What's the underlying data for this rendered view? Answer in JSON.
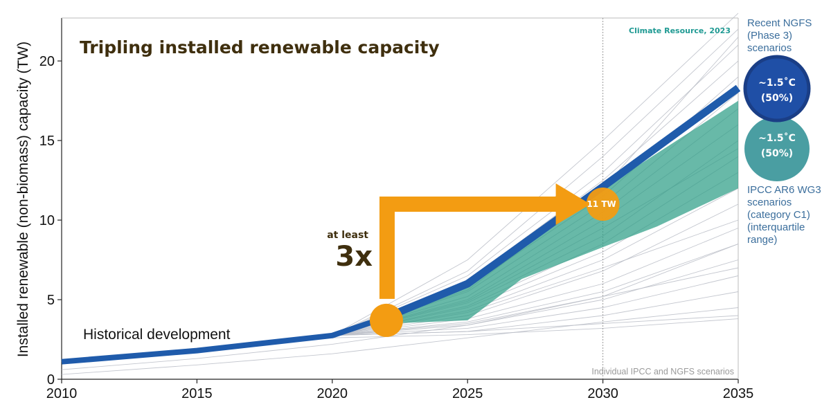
{
  "chart_data": {
    "type": "line",
    "title": "Tripling installed renewable capacity",
    "credit": "Climate Resource, 2023",
    "xlabel": "",
    "ylabel": "Installed renewable (non-biomass) capacity (TW)",
    "x_ticks": [
      "2010",
      "2015",
      "2020",
      "2025",
      "2030",
      "2035"
    ],
    "y_ticks": [
      "0",
      "5",
      "10",
      "15",
      "20"
    ],
    "xlim": [
      2010,
      2035
    ],
    "ylim": [
      0,
      22.7
    ],
    "reference_line_x": 2030,
    "series": [
      {
        "name": "Historical development",
        "x": [
          2010,
          2015,
          2020,
          2022
        ],
        "values": [
          1.1,
          1.8,
          2.75,
          3.9
        ]
      },
      {
        "name": "Recent NGFS (Phase 3) scenarios",
        "x": [
          2022,
          2025,
          2030,
          2035
        ],
        "values": [
          3.9,
          6.0,
          12.1,
          18.3
        ]
      }
    ],
    "band": {
      "name": "IPCC AR6 WG3 scenarios (category C1) (interquartile range)",
      "x": [
        2022,
        2025,
        2027,
        2030,
        2032,
        2035
      ],
      "upper": [
        3.9,
        6.0,
        8.6,
        12.0,
        14.2,
        17.5
      ],
      "lower": [
        3.5,
        3.7,
        6.3,
        8.3,
        9.6,
        12.0
      ]
    },
    "background_scenarios_label": "Individual IPCC and NGFS scenarios",
    "background_scenarios": [
      {
        "x": [
          2010,
          2020,
          2025,
          2030,
          2035
        ],
        "values": [
          1.1,
          2.75,
          7.5,
          15,
          23
        ]
      },
      {
        "x": [
          2010,
          2020,
          2025,
          2030,
          2035
        ],
        "values": [
          1.1,
          2.75,
          6.8,
          14,
          22
        ]
      },
      {
        "x": [
          2010,
          2020,
          2025,
          2030,
          2035
        ],
        "values": [
          1.1,
          2.75,
          6.5,
          13,
          21
        ]
      },
      {
        "x": [
          2010,
          2020,
          2025,
          2030,
          2035
        ],
        "values": [
          1.1,
          2.75,
          6.2,
          12.5,
          20
        ]
      },
      {
        "x": [
          2010,
          2020,
          2025,
          2030,
          2035
        ],
        "values": [
          1.1,
          2.75,
          5.8,
          11.5,
          19
        ]
      },
      {
        "x": [
          2010,
          2020,
          2025,
          2030,
          2035
        ],
        "values": [
          1.1,
          2.75,
          5.5,
          11,
          18
        ]
      },
      {
        "x": [
          2010,
          2020,
          2025,
          2030,
          2035
        ],
        "values": [
          1.1,
          2.75,
          5.2,
          10.5,
          17
        ]
      },
      {
        "x": [
          2010,
          2020,
          2025,
          2030,
          2035
        ],
        "values": [
          1.1,
          2.75,
          5.0,
          10,
          16
        ]
      },
      {
        "x": [
          2010,
          2020,
          2025,
          2030,
          2035
        ],
        "values": [
          1.1,
          2.75,
          4.8,
          9,
          15
        ]
      },
      {
        "x": [
          2010,
          2020,
          2025,
          2030,
          2035
        ],
        "values": [
          1.1,
          2.75,
          4.6,
          8.5,
          14
        ]
      },
      {
        "x": [
          2010,
          2020,
          2025,
          2030,
          2035
        ],
        "values": [
          1.1,
          2.75,
          4.5,
          8,
          13
        ]
      },
      {
        "x": [
          2010,
          2020,
          2025,
          2030,
          2035
        ],
        "values": [
          1.1,
          2.75,
          4.3,
          7.5,
          12
        ]
      },
      {
        "x": [
          2010,
          2020,
          2025,
          2030,
          2035
        ],
        "values": [
          1.1,
          2.75,
          4.0,
          6.8,
          11
        ]
      },
      {
        "x": [
          2010,
          2020,
          2025,
          2030,
          2035
        ],
        "values": [
          1.1,
          2.75,
          3.8,
          6.0,
          9.5
        ]
      },
      {
        "x": [
          2010,
          2020,
          2025,
          2030,
          2035
        ],
        "values": [
          1.1,
          2.75,
          3.6,
          5.5,
          8.5
        ]
      },
      {
        "x": [
          2010,
          2020,
          2025,
          2030,
          2035
        ],
        "values": [
          1.1,
          2.75,
          3.4,
          5.0,
          7.5
        ]
      },
      {
        "x": [
          2010,
          2020,
          2025,
          2030,
          2035
        ],
        "values": [
          1.1,
          2.75,
          3.2,
          4.5,
          6.5
        ]
      },
      {
        "x": [
          2010,
          2020,
          2025,
          2030,
          2035
        ],
        "values": [
          1.1,
          2.75,
          3.0,
          4.0,
          5.5
        ]
      },
      {
        "x": [
          2010,
          2020,
          2025,
          2030,
          2035
        ],
        "values": [
          1.1,
          2.75,
          3.0,
          3.5,
          4.0
        ]
      },
      {
        "x": [
          2010,
          2020,
          2025,
          2030,
          2035
        ],
        "values": [
          1.1,
          2.6,
          2.8,
          3.2,
          3.8
        ]
      },
      {
        "x": [
          2010,
          2020,
          2025,
          2030,
          2035
        ],
        "values": [
          1.1,
          2.75,
          5.6,
          12,
          21.5
        ]
      },
      {
        "x": [
          2010,
          2020,
          2025,
          2030,
          2035
        ],
        "values": [
          1.1,
          2.75,
          4.9,
          9.5,
          14.5
        ]
      },
      {
        "x": [
          2010,
          2020,
          2025,
          2030,
          2035
        ],
        "values": [
          1.1,
          2.75,
          4.2,
          7.0,
          10
        ]
      },
      {
        "x": [
          2010,
          2020,
          2025,
          2030,
          2035
        ],
        "values": [
          1.1,
          2.75,
          3.5,
          5.2,
          7
        ]
      },
      {
        "x": [
          2010,
          2015,
          2020,
          2025,
          2030,
          2035
        ],
        "values": [
          0.3,
          0.9,
          1.6,
          2.6,
          3.6,
          4.5
        ]
      },
      {
        "x": [
          2010,
          2015,
          2020,
          2025,
          2030,
          2035
        ],
        "values": [
          0.6,
          1.3,
          2.2,
          3.4,
          5.2,
          8.5
        ]
      }
    ],
    "annotations": [
      {
        "text": "Historical development"
      },
      {
        "text_small": "at least",
        "text_big": "3x",
        "from_x": 2022,
        "from_y": 3.7,
        "to_x": 2030,
        "to_y": 11
      },
      {
        "text": "11 TW",
        "x": 2030,
        "y": 11
      }
    ]
  },
  "legend": {
    "ngfs": {
      "title": "Recent NGFS (Phase 3) scenarios",
      "title_lines": [
        "Recent NGFS",
        "(Phase 3)",
        "scenarios"
      ],
      "badge_line1": "~1.5˚C",
      "badge_line2": "(50%)",
      "color": "#1f4fa6"
    },
    "ipcc": {
      "title": "IPCC AR6 WG3 scenarios (category C1) (interquartile range)",
      "title_lines": [
        "IPCC AR6 WG3",
        "scenarios",
        "(category C1)",
        "(interquartile",
        "range)"
      ],
      "badge_line1": "~1.5˚C",
      "badge_line2": "(50%)",
      "color": "#4a9ea2"
    }
  },
  "colors": {
    "ngfs_line": "#1f5bab",
    "ipcc_band": "#2e9e86",
    "highlight": "#f39c12",
    "background_lines": "#b8bcc5",
    "title": "#3f2f0e",
    "credit": "#1f9a93",
    "legend_text": "#3b6e9c"
  }
}
